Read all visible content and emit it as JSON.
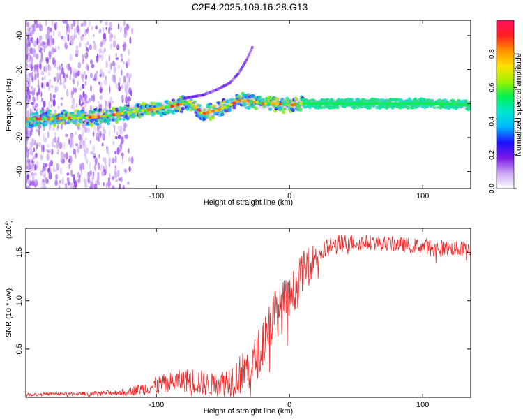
{
  "title": "C2E4.2025.109.16.28.G13",
  "chart_data": [
    {
      "type": "heatmap",
      "xlabel": "Height of straight line (km)",
      "ylabel": "Frequency (Hz)",
      "xlim": [
        -198,
        136
      ],
      "ylim": [
        -50,
        49
      ],
      "xticks": [
        -100,
        0,
        100
      ],
      "xtick_labels": [
        "-100",
        "0",
        "100"
      ],
      "yticks": [
        -40,
        -20,
        0,
        20,
        40
      ],
      "ytick_labels": [
        "-40",
        "-20",
        "0",
        "20",
        "40"
      ],
      "grid": false,
      "ridge": {
        "x": [
          -198,
          -180,
          -160,
          -140,
          -120,
          -100,
          -85,
          -75,
          -65,
          -55,
          -45,
          -38,
          -30,
          -20,
          -10,
          0,
          10,
          40,
          80,
          110,
          136
        ],
        "y": [
          -9,
          -9,
          -8.5,
          -7.5,
          -5,
          -3,
          -1,
          1,
          -6,
          -4,
          -1,
          2,
          1.5,
          0,
          0,
          -1,
          0,
          0,
          0,
          0,
          -1
        ]
      },
      "upper_branch": {
        "x": [
          -80,
          -65,
          -55,
          -45,
          -38,
          -32,
          -28
        ],
        "y": [
          3,
          5,
          8,
          12,
          18,
          26,
          33
        ]
      },
      "colorbar": {
        "label": "Normalized spectral amplitude",
        "ticks": [
          0.0,
          0.2,
          0.4,
          0.6,
          0.8
        ],
        "tick_labels": [
          "0.0",
          "0.2",
          "0.4",
          "0.6",
          "0.8"
        ],
        "range": [
          0,
          1
        ],
        "colors": [
          "#ffffff",
          "#c9a6f2",
          "#7a1ae6",
          "#1e10ff",
          "#00b4ff",
          "#00e6d2",
          "#00f050",
          "#a0f000",
          "#ffe000",
          "#ff9000",
          "#ff2020",
          "#ff1060"
        ]
      }
    },
    {
      "type": "line",
      "xlabel": "Height of straight line (km)",
      "ylabel": "SNR (10 * v/v)",
      "multiplier_label": "(x10",
      "multiplier_exp": "4",
      "multiplier_close": ")",
      "xlim": [
        -198,
        136
      ],
      "ylim": [
        0,
        1.75
      ],
      "xticks": [
        -100,
        0,
        100
      ],
      "xtick_labels": [
        "-100",
        "0",
        "100"
      ],
      "yticks": [
        0.5,
        1.0,
        1.5
      ],
      "ytick_labels": [
        "0.5",
        "1.0",
        "1.5"
      ],
      "color": "#ee2b2b",
      "grid": false,
      "envelope": {
        "x": [
          -198,
          -180,
          -160,
          -140,
          -125,
          -110,
          -100,
          -90,
          -80,
          -70,
          -60,
          -50,
          -40,
          -30,
          -25,
          -20,
          -15,
          -10,
          -5,
          0,
          5,
          10,
          20,
          30,
          40,
          60,
          80,
          100,
          120,
          136
        ],
        "mean": [
          0.03,
          0.04,
          0.04,
          0.05,
          0.06,
          0.1,
          0.14,
          0.17,
          0.2,
          0.2,
          0.15,
          0.18,
          0.25,
          0.35,
          0.45,
          0.65,
          0.8,
          0.95,
          1.0,
          1.05,
          1.2,
          1.35,
          1.5,
          1.58,
          1.62,
          1.62,
          1.6,
          1.58,
          1.56,
          1.55
        ],
        "amplitude": [
          0.02,
          0.02,
          0.02,
          0.03,
          0.04,
          0.08,
          0.12,
          0.14,
          0.15,
          0.18,
          0.15,
          0.18,
          0.25,
          0.3,
          0.3,
          0.35,
          0.35,
          0.35,
          0.35,
          0.3,
          0.28,
          0.25,
          0.18,
          0.14,
          0.12,
          0.1,
          0.1,
          0.1,
          0.1,
          0.1
        ]
      }
    }
  ]
}
